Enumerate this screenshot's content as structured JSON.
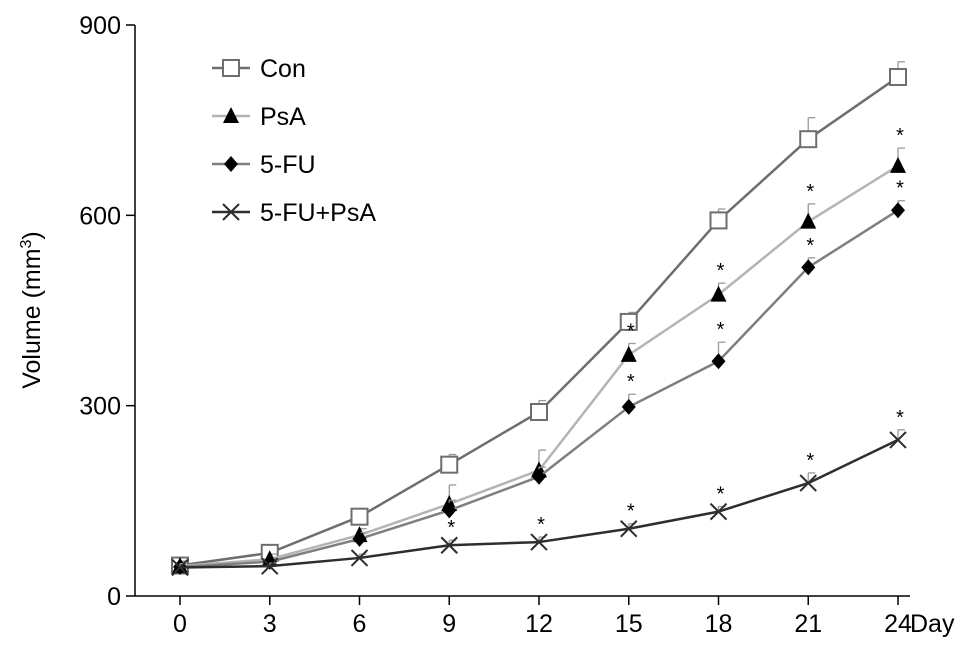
{
  "chart_data": {
    "type": "line",
    "title": "",
    "xlabel": "Day",
    "ylabel": "Volume (mm",
    "ylabel_superscript": "3",
    "ylabel_close": ")",
    "x": [
      0,
      3,
      6,
      9,
      12,
      15,
      18,
      21,
      24
    ],
    "x_tick_labels": [
      "0",
      "3",
      "6",
      "9",
      "12",
      "15",
      "18",
      "21",
      "24"
    ],
    "xlim": [
      0,
      24
    ],
    "ylim": [
      0,
      900
    ],
    "y_ticks": [
      0,
      300,
      600,
      900
    ],
    "y_tick_labels": [
      "0",
      "300",
      "600",
      "900"
    ],
    "grid": false,
    "legend_position": "top-left",
    "significance_marker": "*",
    "series": [
      {
        "name": "Con",
        "marker": "square-open",
        "color": "#6e6e6e",
        "values": [
          48,
          68,
          125,
          207,
          290,
          432,
          592,
          720,
          818
        ],
        "errors": [
          8,
          8,
          12,
          16,
          18,
          15,
          18,
          34,
          24
        ],
        "significant": [
          false,
          false,
          false,
          false,
          false,
          false,
          false,
          false,
          false
        ]
      },
      {
        "name": "PsA",
        "marker": "triangle",
        "color": "#b4b4b4",
        "values": [
          47,
          58,
          96,
          145,
          198,
          380,
          475,
          590,
          678
        ],
        "errors": [
          8,
          8,
          10,
          30,
          32,
          18,
          18,
          28,
          28
        ],
        "significant": [
          false,
          false,
          false,
          false,
          false,
          true,
          true,
          true,
          true
        ]
      },
      {
        "name": "5-FU",
        "marker": "diamond",
        "color": "#7f7f7f",
        "values": [
          46,
          54,
          90,
          135,
          188,
          298,
          370,
          518,
          608
        ],
        "errors": [
          8,
          6,
          10,
          16,
          15,
          20,
          30,
          15,
          15
        ],
        "significant": [
          false,
          false,
          false,
          false,
          false,
          true,
          true,
          true,
          true
        ]
      },
      {
        "name": "5-FU+PsA",
        "marker": "cross",
        "color": "#2e2e2e",
        "values": [
          45,
          47,
          60,
          80,
          85,
          106,
          133,
          178,
          246
        ],
        "errors": [
          6,
          5,
          6,
          8,
          8,
          8,
          8,
          16,
          16
        ],
        "significant": [
          false,
          false,
          false,
          true,
          true,
          true,
          true,
          true,
          true
        ]
      }
    ]
  }
}
